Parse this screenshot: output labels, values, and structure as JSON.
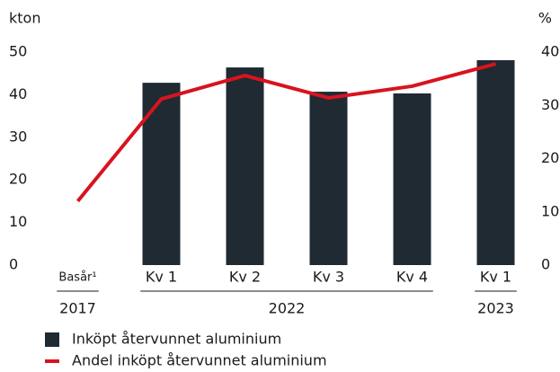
{
  "chart_data": {
    "type": "bar_line",
    "y_label": "kton",
    "y2_label": "%",
    "categories": [
      "Basår¹",
      "Kv 1",
      "Kv 2",
      "Kv 3",
      "Kv 4",
      "Kv 1"
    ],
    "groups": [
      {
        "label": "2017",
        "count": 1
      },
      {
        "label": "2022",
        "count": 4
      },
      {
        "label": "2023",
        "count": 1
      }
    ],
    "series": [
      {
        "name": "Inköpt återvunnet aluminium",
        "type": "bar",
        "color": "#1f2a33",
        "values": [
          null,
          42.8,
          46.4,
          40.7,
          40.3,
          48.1
        ]
      },
      {
        "name": "Andel inköpt återvunnet aluminium",
        "type": "line",
        "axis": "y2",
        "color": "#d7141e",
        "values": [
          12.0,
          31.2,
          35.6,
          31.4,
          33.6,
          37.8
        ]
      }
    ],
    "ylim": [
      0,
      50
    ],
    "yticks": [
      0,
      10,
      20,
      30,
      40,
      50
    ],
    "y2lim": [
      0,
      40
    ],
    "y2ticks": [
      0,
      10,
      20,
      30,
      40
    ],
    "grid": false
  }
}
